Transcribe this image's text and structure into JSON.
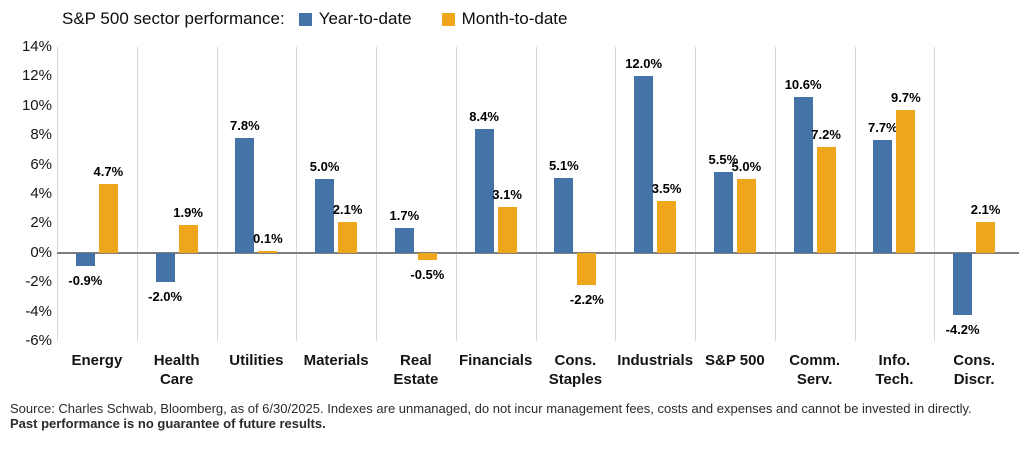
{
  "header": {
    "title": "S&P 500 sector performance:",
    "legend": [
      {
        "label": "Year-to-date",
        "color": "#4573A8"
      },
      {
        "label": "Month-to-date",
        "color": "#F0A61C"
      }
    ]
  },
  "chart_data": {
    "type": "bar",
    "title": "S&P 500 sector performance",
    "categories": [
      "Energy",
      "Health Care",
      "Utilities",
      "Materials",
      "Real Estate",
      "Financials",
      "Cons. Staples",
      "Industrials",
      "S&P 500",
      "Comm. Serv.",
      "Info. Tech.",
      "Cons. Discr."
    ],
    "category_lines": [
      [
        "Energy"
      ],
      [
        "Health",
        "Care"
      ],
      [
        "Utilities"
      ],
      [
        "Materials"
      ],
      [
        "Real",
        "Estate"
      ],
      [
        "Financials"
      ],
      [
        "Cons.",
        "Staples"
      ],
      [
        "Industrials"
      ],
      [
        "S&P 500"
      ],
      [
        "Comm.",
        "Serv."
      ],
      [
        "Info.",
        "Tech."
      ],
      [
        "Cons.",
        "Discr."
      ]
    ],
    "series": [
      {
        "name": "Year-to-date",
        "color": "#4573A8",
        "values": [
          -0.9,
          -2.0,
          7.8,
          5.0,
          1.7,
          8.4,
          5.1,
          12.0,
          5.5,
          10.6,
          7.7,
          -4.2
        ],
        "labels": [
          "-0.9%",
          "-2.0%",
          "7.8%",
          "5.0%",
          "1.7%",
          "8.4%",
          "5.1%",
          "12.0%",
          "5.5%",
          "10.6%",
          "7.7%",
          "-4.2%"
        ]
      },
      {
        "name": "Month-to-date",
        "color": "#F0A61C",
        "values": [
          4.7,
          1.9,
          0.1,
          2.1,
          -0.5,
          3.1,
          -2.2,
          3.5,
          5.0,
          7.2,
          9.7,
          2.1
        ],
        "labels": [
          "4.7%",
          "1.9%",
          "0.1%",
          "2.1%",
          "-0.5%",
          "3.1%",
          "-2.2%",
          "3.5%",
          "5.0%",
          "7.2%",
          "9.7%",
          "2.1%"
        ]
      }
    ],
    "ylim": [
      -6,
      14
    ],
    "ytick_labels": [
      "14%",
      "12%",
      "10%",
      "8%",
      "6%",
      "4%",
      "2%",
      "0%",
      "-2%",
      "-4%",
      "-6%"
    ],
    "grid": "vertical-category-separators-only",
    "legend_position": "top",
    "colors": {
      "zero_line": "#7f7f7f",
      "gridline": "#d8d8d8",
      "label_text": "#000000"
    }
  },
  "footer": {
    "source_text": "Source: Charles Schwab, Bloomberg, as of 6/30/2025.  Indexes are unmanaged, do not incur management fees, costs and expenses and cannot be invested in directly. ",
    "bold_text": "Past performance is no guarantee of future results."
  }
}
